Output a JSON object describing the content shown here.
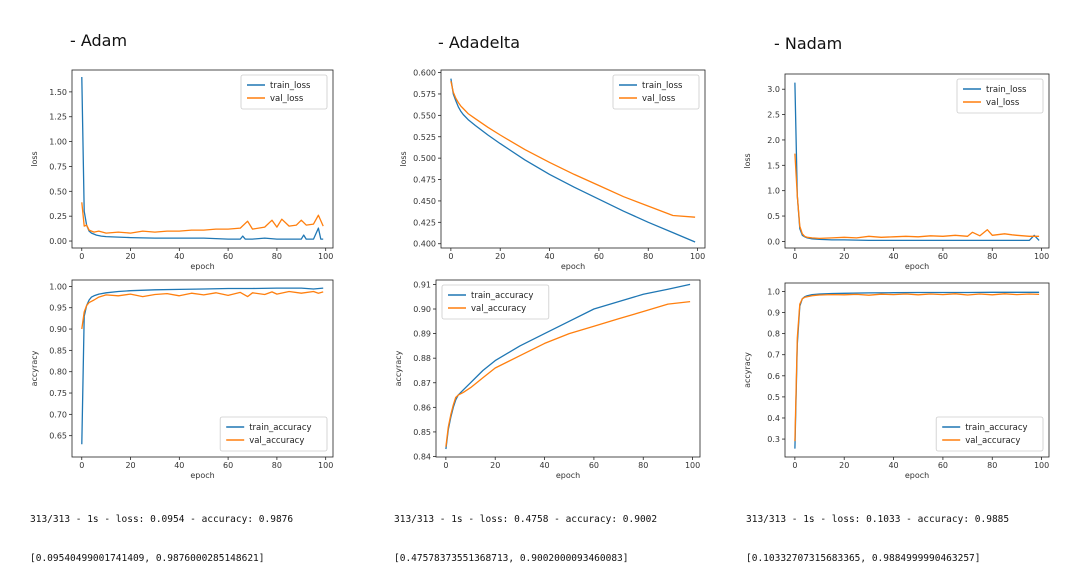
{
  "panels": [
    {
      "heading": "- Adam",
      "output_line1": "313/313 - 1s - loss: 0.0954 - accuracy: 0.9876",
      "output_line2": "[0.09540499001741409, 0.9876000285148621]"
    },
    {
      "heading": "- Adadelta",
      "output_line1": "313/313 - 1s - loss: 0.4758 - accuracy: 0.9002",
      "output_line2": "[0.47578373551368713, 0.9002000093460083]"
    },
    {
      "heading": "- Nadam",
      "output_line1": "313/313 - 1s - loss: 0.1033 - accuracy: 0.9885",
      "output_line2": "[0.10332707315683365, 0.9884999990463257]"
    }
  ],
  "colors": {
    "train": "#1f77b4",
    "val": "#ff7f0e",
    "frame": "#222222"
  },
  "chart_data": [
    {
      "type": "line",
      "panel": "Adam",
      "xlabel": "epoch",
      "ylabel": "loss",
      "xlim": [
        -4,
        103
      ],
      "ylim": [
        -0.07,
        1.72
      ],
      "xticks": [
        0,
        20,
        40,
        60,
        80,
        100
      ],
      "yticks": [
        0.0,
        0.25,
        0.5,
        0.75,
        1.0,
        1.25,
        1.5
      ],
      "ytick_labels": [
        "0.00",
        "0.25",
        "0.50",
        "0.75",
        "1.00",
        "1.25",
        "1.50"
      ],
      "legend": "top-right",
      "series": [
        {
          "name": "train_loss",
          "role": "train",
          "x": [
            0,
            1,
            2,
            3,
            4,
            5,
            6,
            8,
            10,
            15,
            20,
            30,
            40,
            50,
            60,
            65,
            66,
            67,
            70,
            75,
            80,
            85,
            90,
            91,
            92,
            95,
            97,
            98,
            99
          ],
          "y": [
            1.65,
            0.3,
            0.16,
            0.1,
            0.08,
            0.07,
            0.06,
            0.05,
            0.045,
            0.04,
            0.035,
            0.03,
            0.03,
            0.03,
            0.02,
            0.02,
            0.05,
            0.02,
            0.02,
            0.03,
            0.02,
            0.02,
            0.02,
            0.06,
            0.02,
            0.02,
            0.13,
            0.02,
            0.02
          ]
        },
        {
          "name": "val_loss",
          "role": "val",
          "x": [
            0,
            1,
            2,
            3,
            4,
            5,
            7,
            10,
            15,
            20,
            25,
            30,
            35,
            40,
            45,
            50,
            55,
            60,
            65,
            68,
            70,
            75,
            78,
            80,
            82,
            85,
            88,
            90,
            92,
            95,
            97,
            99
          ],
          "y": [
            0.39,
            0.15,
            0.16,
            0.11,
            0.1,
            0.09,
            0.1,
            0.08,
            0.09,
            0.08,
            0.1,
            0.09,
            0.1,
            0.1,
            0.11,
            0.11,
            0.12,
            0.12,
            0.13,
            0.2,
            0.12,
            0.14,
            0.21,
            0.14,
            0.22,
            0.15,
            0.16,
            0.21,
            0.16,
            0.17,
            0.26,
            0.15
          ]
        }
      ]
    },
    {
      "type": "line",
      "panel": "Adam",
      "xlabel": "epoch",
      "ylabel": "accyracy",
      "xlim": [
        -4,
        103
      ],
      "ylim": [
        0.6,
        1.015
      ],
      "xticks": [
        0,
        20,
        40,
        60,
        80,
        100
      ],
      "yticks": [
        0.65,
        0.7,
        0.75,
        0.8,
        0.85,
        0.9,
        0.95,
        1.0
      ],
      "ytick_labels": [
        "0.65",
        "0.70",
        "0.75",
        "0.80",
        "0.85",
        "0.90",
        "0.95",
        "1.00"
      ],
      "legend": "bottom-right",
      "series": [
        {
          "name": "train_accuracy",
          "role": "train",
          "x": [
            0,
            1,
            2,
            3,
            4,
            5,
            7,
            10,
            15,
            20,
            30,
            40,
            50,
            60,
            70,
            80,
            90,
            95,
            99
          ],
          "y": [
            0.63,
            0.93,
            0.955,
            0.968,
            0.975,
            0.978,
            0.982,
            0.985,
            0.988,
            0.99,
            0.992,
            0.993,
            0.994,
            0.995,
            0.995,
            0.996,
            0.996,
            0.994,
            0.996
          ]
        },
        {
          "name": "val_accuracy",
          "role": "val",
          "x": [
            0,
            1,
            2,
            3,
            4,
            5,
            7,
            10,
            15,
            20,
            25,
            30,
            35,
            40,
            45,
            50,
            55,
            60,
            65,
            68,
            70,
            75,
            78,
            80,
            85,
            90,
            95,
            97,
            99
          ],
          "y": [
            0.9,
            0.94,
            0.955,
            0.962,
            0.965,
            0.968,
            0.975,
            0.98,
            0.978,
            0.982,
            0.976,
            0.981,
            0.983,
            0.978,
            0.984,
            0.98,
            0.985,
            0.979,
            0.986,
            0.976,
            0.985,
            0.981,
            0.987,
            0.982,
            0.988,
            0.984,
            0.988,
            0.984,
            0.987
          ]
        }
      ]
    },
    {
      "type": "line",
      "panel": "Adadelta",
      "xlabel": "epoch",
      "ylabel": "loss",
      "xlim": [
        -4,
        103
      ],
      "ylim": [
        0.395,
        0.603
      ],
      "xticks": [
        0,
        20,
        40,
        60,
        80,
        100
      ],
      "yticks": [
        0.4,
        0.425,
        0.45,
        0.475,
        0.5,
        0.525,
        0.55,
        0.575,
        0.6
      ],
      "ytick_labels": [
        "0.400",
        "0.425",
        "0.450",
        "0.475",
        "0.500",
        "0.525",
        "0.550",
        "0.575",
        "0.600"
      ],
      "legend": "top-right",
      "series": [
        {
          "name": "train_loss",
          "role": "train",
          "x": [
            0,
            1,
            2,
            3,
            4,
            5,
            7,
            10,
            15,
            20,
            30,
            40,
            50,
            60,
            70,
            80,
            90,
            99
          ],
          "y": [
            0.593,
            0.575,
            0.567,
            0.56,
            0.555,
            0.551,
            0.545,
            0.538,
            0.527,
            0.517,
            0.498,
            0.481,
            0.466,
            0.452,
            0.438,
            0.425,
            0.413,
            0.402
          ]
        },
        {
          "name": "val_loss",
          "role": "val",
          "x": [
            0,
            1,
            2,
            3,
            4,
            5,
            7,
            10,
            15,
            20,
            30,
            40,
            50,
            60,
            70,
            80,
            90,
            99
          ],
          "y": [
            0.59,
            0.577,
            0.57,
            0.565,
            0.561,
            0.558,
            0.552,
            0.546,
            0.536,
            0.527,
            0.51,
            0.495,
            0.481,
            0.468,
            0.455,
            0.444,
            0.433,
            0.431
          ]
        }
      ]
    },
    {
      "type": "line",
      "panel": "Adadelta",
      "xlabel": "epoch",
      "ylabel": "accyracy",
      "xlim": [
        -4,
        103
      ],
      "ylim": [
        0.8398,
        0.9118
      ],
      "xticks": [
        0,
        20,
        40,
        60,
        80,
        100
      ],
      "yticks": [
        0.84,
        0.85,
        0.86,
        0.87,
        0.88,
        0.89,
        0.9,
        0.91
      ],
      "ytick_labels": [
        "0.84",
        "0.85",
        "0.86",
        "0.87",
        "0.88",
        "0.89",
        "0.90",
        "0.91"
      ],
      "legend": "top-left",
      "series": [
        {
          "name": "train_accuracy",
          "role": "train",
          "x": [
            0,
            1,
            2,
            3,
            4,
            5,
            7,
            10,
            15,
            20,
            30,
            40,
            50,
            60,
            70,
            80,
            90,
            99
          ],
          "y": [
            0.843,
            0.851,
            0.856,
            0.86,
            0.863,
            0.865,
            0.867,
            0.87,
            0.875,
            0.879,
            0.885,
            0.89,
            0.895,
            0.9,
            0.903,
            0.906,
            0.908,
            0.91
          ]
        },
        {
          "name": "val_accuracy",
          "role": "val",
          "x": [
            0,
            1,
            2,
            3,
            4,
            5,
            7,
            10,
            15,
            20,
            30,
            40,
            50,
            60,
            70,
            80,
            90,
            99
          ],
          "y": [
            0.844,
            0.852,
            0.857,
            0.861,
            0.864,
            0.865,
            0.866,
            0.868,
            0.872,
            0.876,
            0.881,
            0.886,
            0.89,
            0.893,
            0.896,
            0.899,
            0.902,
            0.903
          ]
        }
      ]
    },
    {
      "type": "line",
      "panel": "Nadam",
      "xlabel": "epoch",
      "ylabel": "loss",
      "xlim": [
        -4,
        103
      ],
      "ylim": [
        -0.13,
        3.3
      ],
      "xticks": [
        0,
        20,
        40,
        60,
        80,
        100
      ],
      "yticks": [
        0.0,
        0.5,
        1.0,
        1.5,
        2.0,
        2.5,
        3.0
      ],
      "ytick_labels": [
        "0.0",
        "0.5",
        "1.0",
        "1.5",
        "2.0",
        "2.5",
        "3.0"
      ],
      "legend": "top-right",
      "series": [
        {
          "name": "train_loss",
          "role": "train",
          "x": [
            0,
            1,
            2,
            3,
            4,
            5,
            7,
            10,
            15,
            20,
            30,
            40,
            50,
            60,
            70,
            80,
            90,
            95,
            97,
            99
          ],
          "y": [
            3.13,
            0.9,
            0.25,
            0.12,
            0.09,
            0.07,
            0.05,
            0.04,
            0.03,
            0.03,
            0.02,
            0.02,
            0.02,
            0.02,
            0.02,
            0.02,
            0.02,
            0.02,
            0.12,
            0.02
          ]
        },
        {
          "name": "val_loss",
          "role": "val",
          "x": [
            0,
            1,
            2,
            3,
            4,
            5,
            7,
            10,
            15,
            20,
            25,
            30,
            35,
            40,
            45,
            50,
            55,
            60,
            65,
            70,
            72,
            75,
            78,
            80,
            85,
            88,
            90,
            95,
            99
          ],
          "y": [
            1.73,
            0.9,
            0.3,
            0.15,
            0.1,
            0.08,
            0.07,
            0.06,
            0.07,
            0.08,
            0.07,
            0.1,
            0.08,
            0.09,
            0.1,
            0.09,
            0.11,
            0.1,
            0.12,
            0.1,
            0.18,
            0.11,
            0.23,
            0.12,
            0.15,
            0.13,
            0.12,
            0.1,
            0.1
          ]
        }
      ]
    },
    {
      "type": "line",
      "panel": "Nadam",
      "xlabel": "epoch",
      "ylabel": "accyracy",
      "xlim": [
        -4,
        103
      ],
      "ylim": [
        0.215,
        1.04
      ],
      "xticks": [
        0,
        20,
        40,
        60,
        80,
        100
      ],
      "yticks": [
        0.3,
        0.4,
        0.5,
        0.6,
        0.7,
        0.8,
        0.9,
        1.0
      ],
      "ytick_labels": [
        "0.3",
        "0.4",
        "0.5",
        "0.6",
        "0.7",
        "0.8",
        "0.9",
        "1.0"
      ],
      "legend": "bottom-right",
      "series": [
        {
          "name": "train_accuracy",
          "role": "train",
          "x": [
            0,
            1,
            2,
            3,
            4,
            5,
            7,
            10,
            15,
            20,
            30,
            40,
            50,
            60,
            70,
            80,
            90,
            99
          ],
          "y": [
            0.255,
            0.75,
            0.93,
            0.965,
            0.975,
            0.98,
            0.985,
            0.988,
            0.99,
            0.991,
            0.993,
            0.994,
            0.995,
            0.995,
            0.995,
            0.996,
            0.996,
            0.996
          ]
        },
        {
          "name": "val_accuracy",
          "role": "val",
          "x": [
            0,
            1,
            2,
            3,
            4,
            5,
            7,
            10,
            15,
            20,
            25,
            30,
            35,
            40,
            45,
            50,
            55,
            60,
            65,
            70,
            75,
            80,
            85,
            90,
            95,
            99
          ],
          "y": [
            0.29,
            0.78,
            0.94,
            0.965,
            0.972,
            0.975,
            0.98,
            0.983,
            0.985,
            0.984,
            0.986,
            0.982,
            0.987,
            0.985,
            0.988,
            0.984,
            0.988,
            0.985,
            0.989,
            0.983,
            0.988,
            0.984,
            0.989,
            0.985,
            0.988,
            0.986
          ]
        }
      ]
    }
  ]
}
